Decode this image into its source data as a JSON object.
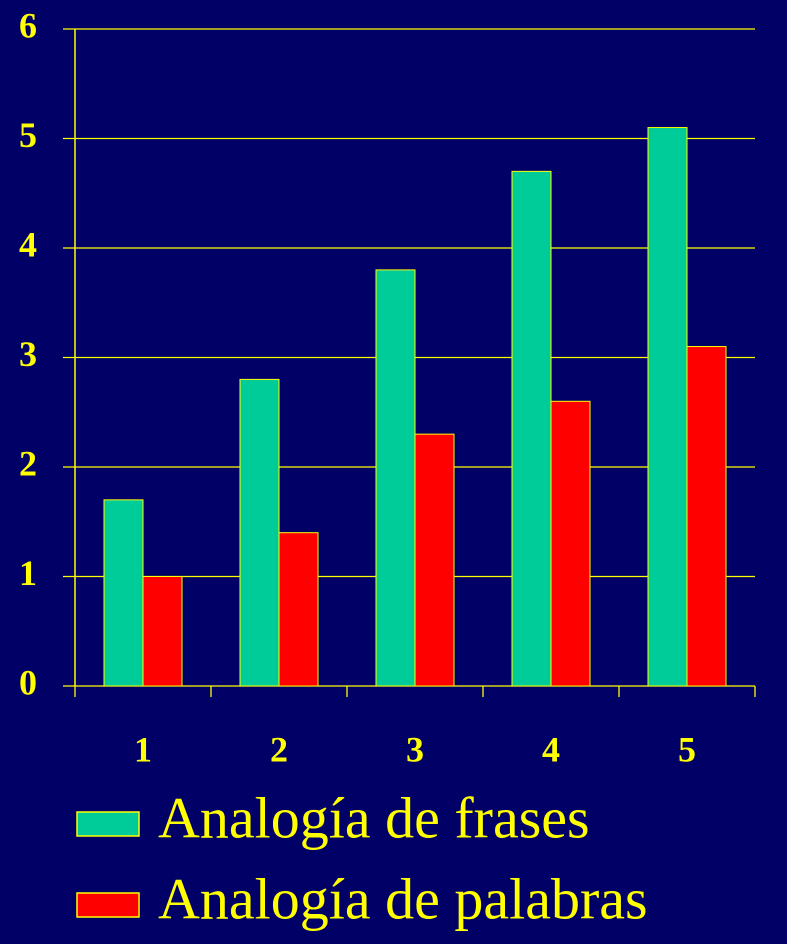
{
  "chart_data": {
    "type": "bar",
    "categories": [
      "1",
      "2",
      "3",
      "4",
      "5"
    ],
    "series": [
      {
        "name": "Analogía de frases",
        "color": "#00cc99",
        "values": [
          1.7,
          2.8,
          3.8,
          4.7,
          5.1
        ]
      },
      {
        "name": "Analogía de palabras",
        "color": "#ff0000",
        "values": [
          1,
          1.4,
          2.3,
          2.6,
          3.1
        ]
      }
    ],
    "ylim": [
      0,
      6
    ],
    "yticks": [
      0,
      1,
      2,
      3,
      4,
      5,
      6
    ],
    "grid": true,
    "legend": "bottom"
  }
}
